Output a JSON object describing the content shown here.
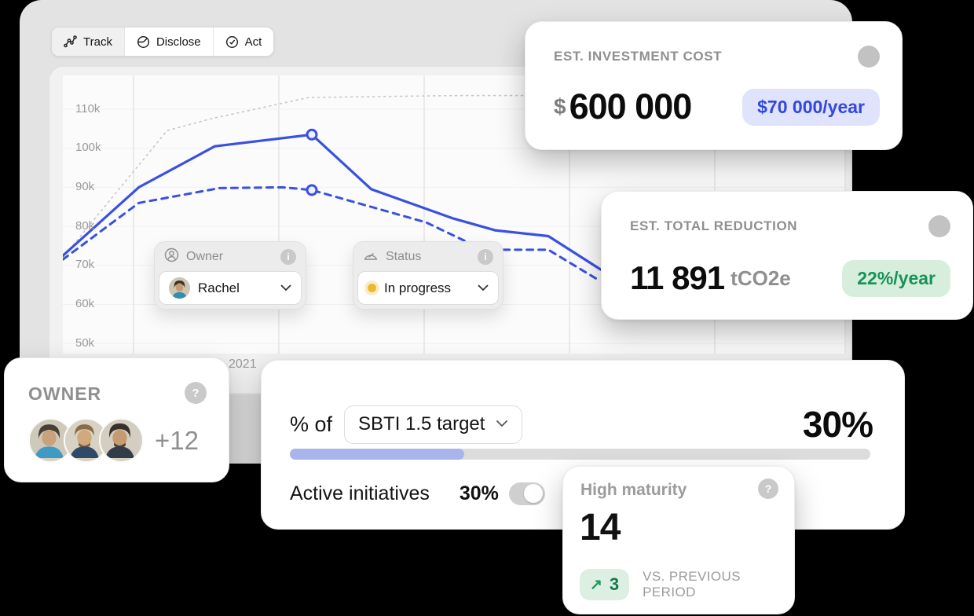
{
  "colors": {
    "accent_blue": "#3a50e0",
    "badge_blue_bg": "#dfe3fb",
    "green": "#17925a",
    "green_bg": "#d8eedd",
    "yellow_status": "#eaba2e",
    "window_bg": "#e3e3e3",
    "canvas_bg": "#000000"
  },
  "tabs": [
    {
      "label": "Track",
      "icon": "route-icon",
      "selected": true
    },
    {
      "label": "Disclose",
      "icon": "pie-icon",
      "selected": false
    },
    {
      "label": "Act",
      "icon": "target-check-icon",
      "selected": false
    }
  ],
  "filters": {
    "owner": {
      "label": "Owner",
      "value": "Rachel"
    },
    "status": {
      "label": "Status",
      "value": "In progress"
    }
  },
  "cards": {
    "investment": {
      "title": "EST. INVESTMENT COST",
      "currency": "$",
      "value": "600 000",
      "badge": "$70 000/year"
    },
    "reduction": {
      "title": "EST. TOTAL REDUCTION",
      "value": "11 891",
      "unit": "tCO2e",
      "badge": "22%/year"
    },
    "owner": {
      "title": "OWNER",
      "more": "+12",
      "avatar_count": 3
    },
    "sbti": {
      "prefix": "% of",
      "select_value": "SBTI 1.5 target",
      "percent": "30%",
      "progress_percent": 30,
      "row_label": "Active initiatives",
      "row_percent": "30%",
      "toggle_on": true
    },
    "maturity": {
      "title": "High maturity",
      "value": "14",
      "delta": "3",
      "delta_arrow": "↗",
      "caption": "VS. PREVIOUS PERIOD"
    }
  },
  "chart_data": {
    "type": "line",
    "yticks": [
      "110k",
      "100k",
      "90k",
      "80k",
      "70k",
      "60k",
      "50k"
    ],
    "ytick_values": [
      110,
      100,
      90,
      80,
      70,
      60,
      50
    ],
    "ylim_k": [
      47,
      118
    ],
    "x_tick_label": "2021",
    "grid": true,
    "accent": "#3a50e0",
    "series": [
      {
        "name": "baseline-dotted-gray",
        "style": "dotted",
        "color": "#c7c7c7",
        "stroke_width": 1.6,
        "dash": "2 5",
        "points": [
          [
            0,
            72
          ],
          [
            0.133,
            104.5
          ],
          [
            0.188,
            107.5
          ],
          [
            0.314,
            113
          ],
          [
            0.5,
            113.5
          ],
          [
            1,
            113.5
          ]
        ]
      },
      {
        "name": "emissions-solid-blue",
        "style": "solid",
        "color": "#3a50e0",
        "stroke_width": 3.2,
        "dash": "",
        "points": [
          [
            0,
            72.5
          ],
          [
            0.097,
            90
          ],
          [
            0.194,
            100.5
          ],
          [
            0.318,
            103.5
          ],
          [
            0.394,
            89.5
          ],
          [
            0.499,
            82
          ],
          [
            0.552,
            79
          ],
          [
            0.62,
            77.5
          ],
          [
            0.702,
            67
          ]
        ]
      },
      {
        "name": "target-dashed-blue",
        "style": "dashed",
        "color": "#3a50e0",
        "stroke_width": 3,
        "dash": "8 7",
        "points": [
          [
            0,
            71.5
          ],
          [
            0.097,
            86
          ],
          [
            0.2,
            89.8
          ],
          [
            0.281,
            90
          ],
          [
            0.318,
            89.3
          ],
          [
            0.464,
            81
          ],
          [
            0.537,
            74
          ],
          [
            0.62,
            74
          ],
          [
            0.682,
            66.5
          ]
        ]
      }
    ],
    "markers": [
      {
        "series": "emissions-solid-blue",
        "x": 0.318,
        "value": 103.5
      },
      {
        "series": "target-dashed-blue",
        "x": 0.318,
        "value": 89.3
      }
    ]
  }
}
